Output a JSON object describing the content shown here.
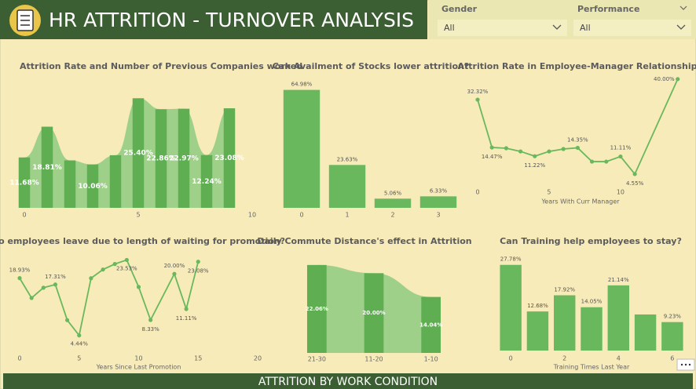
{
  "header": {
    "title": "HR ATTRITION - TURNOVER ANALYSIS"
  },
  "slicers": [
    {
      "label": "Gender",
      "value": "All"
    },
    {
      "label": "Performance",
      "value": "All"
    }
  ],
  "chart_data": [
    {
      "type": "ribbon",
      "title": "Attrition Rate and Number of Previous Companies worked",
      "x": [
        0,
        1,
        2,
        3,
        4,
        5,
        6,
        7,
        8,
        9
      ],
      "values": [
        11.68,
        18.81,
        11,
        10.06,
        12.2,
        25.4,
        22.86,
        22.97,
        12.24,
        23.08
      ],
      "value_labels": [
        "11.68%",
        "18.81%",
        null,
        "10.06%",
        null,
        "25.40%",
        "22.86%",
        "22.97%",
        "12.24%",
        "23.08%"
      ],
      "xlim": [
        0,
        10
      ],
      "xticks": [
        0,
        5,
        10
      ],
      "ylim": [
        0,
        28
      ],
      "color": "#5fae52",
      "ribbon_color": "#9fd08a"
    },
    {
      "type": "bar",
      "title": "Can Availment of Stocks lower attrition?",
      "categories": [
        "0",
        "1",
        "2",
        "3"
      ],
      "values": [
        64.98,
        23.63,
        5.06,
        6.33
      ],
      "value_labels": [
        "64.98%",
        "23.63%",
        "5.06%",
        "6.33%"
      ],
      "ylim": [
        0,
        70
      ],
      "color": "#6ab85e"
    },
    {
      "type": "line",
      "title": "Attrition Rate in Employee-Manager Relationship",
      "xlabel": "Years With Curr Manager",
      "x": [
        0,
        1,
        2,
        3,
        4,
        5,
        6,
        7,
        8,
        9,
        10,
        11,
        14
      ],
      "values": [
        32.32,
        14.47,
        14.2,
        13.0,
        11.22,
        13.0,
        13.9,
        14.35,
        9.2,
        9.2,
        11.11,
        4.55,
        40.0
      ],
      "value_labels": [
        "32.32%",
        "14.47%",
        null,
        null,
        "11.22%",
        null,
        null,
        "14.35%",
        null,
        null,
        "11.11%",
        "4.55%",
        "40.00%"
      ],
      "xlim": [
        0,
        14.4
      ],
      "xticks": [
        0,
        5,
        10
      ],
      "ylim": [
        0,
        42
      ],
      "color": "#6ab85e"
    },
    {
      "type": "line",
      "title": "Do employees leave due to length of waiting for promotion?",
      "xlabel": "Years Since Last Promotion",
      "x": [
        0,
        1,
        2,
        3,
        4,
        5,
        6,
        7,
        8,
        9,
        10,
        11,
        13,
        14,
        15
      ],
      "values": [
        18.93,
        13.9,
        16.5,
        17.31,
        8.3,
        4.44,
        18.9,
        21.1,
        22.5,
        23.53,
        16.7,
        8.33,
        20.0,
        11.11,
        23.08
      ],
      "value_labels": [
        "18.93%",
        null,
        null,
        "17.31%",
        null,
        "4.44%",
        null,
        null,
        null,
        "23.53%",
        null,
        "8.33%",
        "20.00%",
        "11.11%",
        "23.08%"
      ],
      "xlim": [
        0,
        20
      ],
      "xticks": [
        0,
        5,
        10,
        15,
        20
      ],
      "ylim": [
        0,
        26
      ],
      "color": "#6ab85e"
    },
    {
      "type": "ribbon",
      "title": "Daily Commute Distance's effect in Attrition",
      "categories": [
        "21-30",
        "11-20",
        "1-10"
      ],
      "values": [
        22.06,
        20.0,
        14.04
      ],
      "value_labels": [
        "22.06%",
        "20.00%",
        "14.04%"
      ],
      "ylim": [
        0,
        24
      ],
      "color": "#5fae52",
      "ribbon_color": "#9fd08a"
    },
    {
      "type": "bar",
      "title": "Can Training help employees to stay?",
      "xlabel": "Training Times Last Year",
      "categories": [
        "0",
        null,
        "2",
        null,
        "4",
        null,
        "6"
      ],
      "values": [
        27.78,
        12.68,
        17.92,
        14.05,
        21.14,
        11.7,
        9.23
      ],
      "value_labels": [
        "27.78%",
        "12.68%",
        "17.92%",
        "14.05%",
        "21.14%",
        null,
        "9.23%"
      ],
      "ylim": [
        0,
        30
      ],
      "color": "#6ab85e"
    }
  ],
  "footer": {
    "title": "ATTRITION BY WORK CONDITION"
  }
}
